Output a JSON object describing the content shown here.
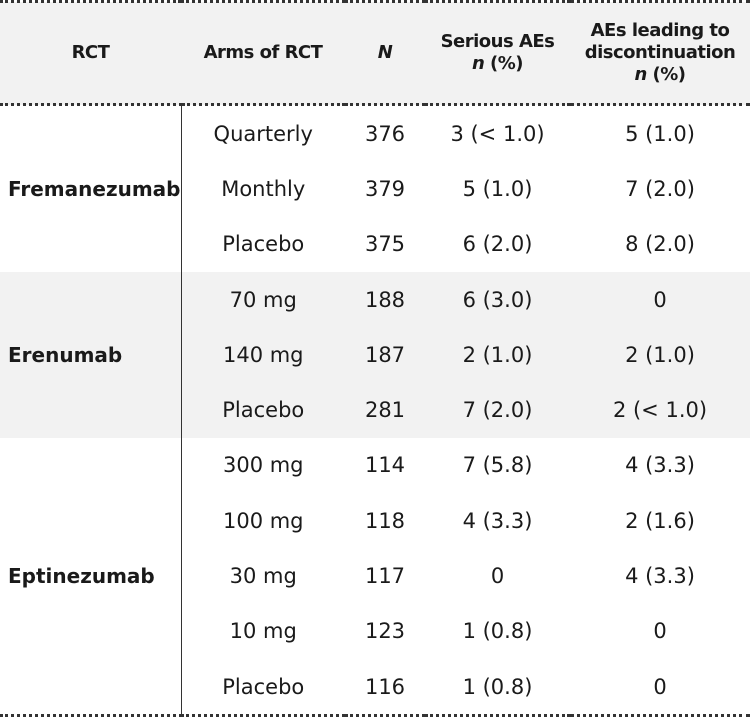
{
  "header": {
    "rct": "RCT",
    "arms": "Arms of RCT",
    "n": "N",
    "serious": {
      "line1": "Serious AEs",
      "n": "n",
      "pct": "(%)"
    },
    "discontinuation": {
      "line1": "AEs leading to",
      "line2": "discontinuation",
      "n": "n",
      "pct": "(%)"
    }
  },
  "groups": [
    {
      "name": "Fremanezumab",
      "rows": [
        [
          "Quarterly",
          "376",
          "3 (< 1.0)",
          "5 (1.0)"
        ],
        [
          "Monthly",
          "379",
          "5 (1.0)",
          "7 (2.0)"
        ],
        [
          "Placebo",
          "375",
          "6 (2.0)",
          "8 (2.0)"
        ]
      ]
    },
    {
      "name": "Erenumab",
      "rows": [
        [
          "70 mg",
          "188",
          "6 (3.0)",
          "0"
        ],
        [
          "140 mg",
          "187",
          "2 (1.0)",
          "2 (1.0)"
        ],
        [
          "Placebo",
          "281",
          "7 (2.0)",
          "2 (< 1.0)"
        ]
      ]
    },
    {
      "name": "Eptinezumab",
      "rows": [
        [
          "300 mg",
          "114",
          "7 (5.8)",
          "4 (3.3)"
        ],
        [
          "100 mg",
          "118",
          "4 (3.3)",
          "2 (1.6)"
        ],
        [
          "30 mg",
          "117",
          "0",
          "4 (3.3)"
        ],
        [
          "10 mg",
          "123",
          "1 (0.8)",
          "0"
        ],
        [
          "Placebo",
          "116",
          "1 (0.8)",
          "0"
        ]
      ]
    }
  ]
}
